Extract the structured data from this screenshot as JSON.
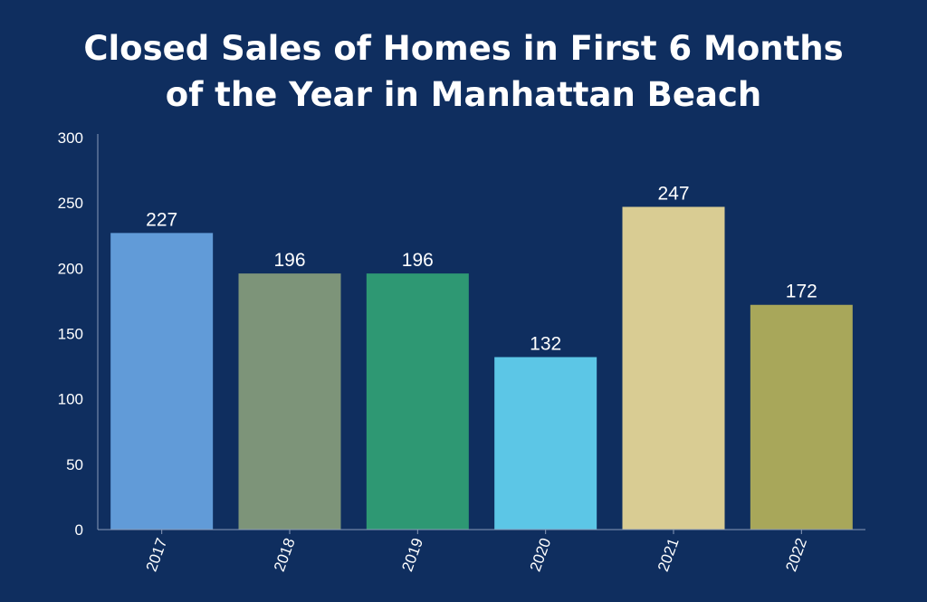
{
  "chart_data": {
    "type": "bar",
    "title": "Closed Sales of Homes in First 6 Months of the Year in Manhattan Beach",
    "title_lines": [
      "Closed Sales of Homes in First 6 Months",
      "of the Year in Manhattan Beach"
    ],
    "categories": [
      "2017",
      "2018",
      "2019",
      "2020",
      "2021",
      "2022"
    ],
    "values": [
      227,
      196,
      196,
      132,
      247,
      172
    ],
    "data_labels": [
      "227",
      "196",
      "196",
      "132",
      "247",
      "172"
    ],
    "bar_colors": [
      "#619bd8",
      "#7d9479",
      "#2e9873",
      "#5cc6e6",
      "#d9cc93",
      "#a8a75a"
    ],
    "xlabel": "",
    "ylabel": "",
    "ylim": [
      0,
      300
    ],
    "yticks": [
      0,
      50,
      100,
      150,
      200,
      250,
      300
    ],
    "grid": false,
    "legend": "none"
  },
  "colors": {
    "background": "#0f2e5f",
    "text": "#ffffff",
    "axis": "#8a9bb8"
  }
}
